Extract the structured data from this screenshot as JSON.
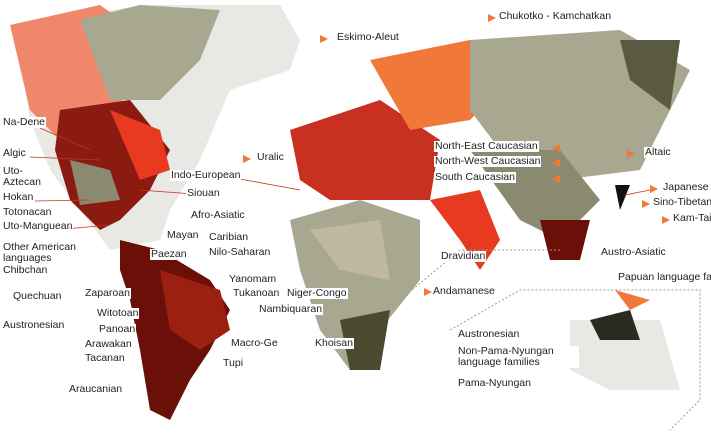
{
  "labels": [
    {
      "text": "Eskimo-Aleut"
    },
    {
      "text": "Chukotko - Kamchatkan"
    },
    {
      "text": "Na-Dene"
    },
    {
      "text": "Algic"
    },
    {
      "text": "Uto-Aztecan"
    },
    {
      "text": "Hokan"
    },
    {
      "text": "Totonacan"
    },
    {
      "text": "Uto-Manguean"
    },
    {
      "text": "Other American languages"
    },
    {
      "text": "Chibchan"
    },
    {
      "text": "Quechuan"
    },
    {
      "text": "Austronesian"
    },
    {
      "text": "Uralic"
    },
    {
      "text": "Indo-European"
    },
    {
      "text": "Siouan"
    },
    {
      "text": "Afro-Asiatic"
    },
    {
      "text": "Mayan"
    },
    {
      "text": "Caribian"
    },
    {
      "text": "Nilo-Saharan"
    },
    {
      "text": "Paezan"
    },
    {
      "text": "Yanomam"
    },
    {
      "text": "Zaparoan"
    },
    {
      "text": "Tukanoan"
    },
    {
      "text": "Niger-Congo"
    },
    {
      "text": "Witotoan"
    },
    {
      "text": "Panoan"
    },
    {
      "text": "Nambiquaran"
    },
    {
      "text": "Arawakan"
    },
    {
      "text": "Tacanan"
    },
    {
      "text": "Macro-Ge"
    },
    {
      "text": "Khoisan"
    },
    {
      "text": "Tupi"
    },
    {
      "text": "Araucanian"
    },
    {
      "text": "North-East Caucasian"
    },
    {
      "text": "North-West Caucasian"
    },
    {
      "text": "South Caucasian"
    },
    {
      "text": "Altaic"
    },
    {
      "text": "Japanese"
    },
    {
      "text": "Sino-Tibetan"
    },
    {
      "text": "Kam-Tai"
    },
    {
      "text": "Austro-Asiatic"
    },
    {
      "text": "Dravidian"
    },
    {
      "text": "Andamanese"
    },
    {
      "text": "Papuan language families"
    },
    {
      "text": "Austronesian"
    },
    {
      "text": "Non-Pama-Nyungan language families"
    },
    {
      "text": "Pama-Nyungan"
    }
  ]
}
